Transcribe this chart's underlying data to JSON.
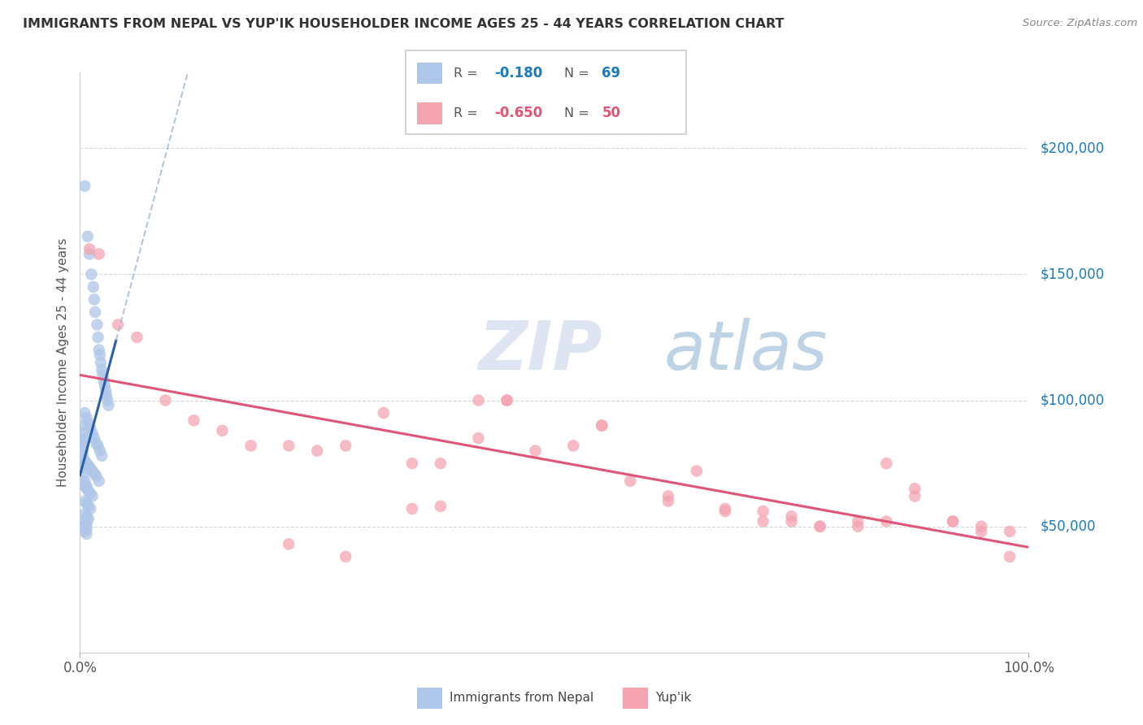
{
  "title": "IMMIGRANTS FROM NEPAL VS YUP'IK HOUSEHOLDER INCOME AGES 25 - 44 YEARS CORRELATION CHART",
  "source": "Source: ZipAtlas.com",
  "ylabel": "Householder Income Ages 25 - 44 years",
  "x_tick_labels": [
    "0.0%",
    "100.0%"
  ],
  "y_tick_labels": [
    "$50,000",
    "$100,000",
    "$150,000",
    "$200,000"
  ],
  "y_tick_values": [
    50000,
    100000,
    150000,
    200000
  ],
  "xlim": [
    0.0,
    1.0
  ],
  "ylim": [
    0,
    230000
  ],
  "legend_nepal_r": "-0.180",
  "legend_nepal_n": "69",
  "legend_yupik_r": "-0.650",
  "legend_yupik_n": "50",
  "nepal_color": "#aec6e8",
  "yupik_color": "#f4a4b0",
  "nepal_line_color": "#2c5fa8",
  "yupik_line_color": "#e05575",
  "nepal_dash_color": "#a0b8d8",
  "r_nepal_color": "#1a7abf",
  "n_nepal_color": "#1a7abf",
  "r_yupik_color": "#e05575",
  "n_yupik_color": "#e05575",
  "nepal_scatter_x": [
    0.005,
    0.008,
    0.01,
    0.012,
    0.014,
    0.015,
    0.016,
    0.018,
    0.019,
    0.02,
    0.021,
    0.022,
    0.023,
    0.024,
    0.025,
    0.026,
    0.027,
    0.028,
    0.029,
    0.03,
    0.005,
    0.007,
    0.009,
    0.011,
    0.013,
    0.015,
    0.017,
    0.019,
    0.021,
    0.023,
    0.005,
    0.007,
    0.009,
    0.011,
    0.013,
    0.015,
    0.017,
    0.02,
    0.005,
    0.007,
    0.009,
    0.011,
    0.013,
    0.005,
    0.007,
    0.009,
    0.011,
    0.005,
    0.007,
    0.009,
    0.005,
    0.007,
    0.005,
    0.007,
    0.005,
    0.007,
    0.003,
    0.005,
    0.007,
    0.003,
    0.005,
    0.003,
    0.005,
    0.003,
    0.003,
    0.003,
    0.003,
    0.003,
    0.003
  ],
  "nepal_scatter_y": [
    185000,
    165000,
    158000,
    150000,
    145000,
    140000,
    135000,
    130000,
    125000,
    120000,
    118000,
    115000,
    112000,
    110000,
    108000,
    106000,
    104000,
    102000,
    100000,
    98000,
    95000,
    93000,
    91000,
    89000,
    87000,
    85000,
    83000,
    82000,
    80000,
    78000,
    76000,
    75000,
    74000,
    73000,
    72000,
    71000,
    70000,
    68000,
    66000,
    65000,
    64000,
    63000,
    62000,
    60000,
    59000,
    58000,
    57000,
    55000,
    54000,
    53000,
    52000,
    51000,
    50000,
    49000,
    48000,
    47000,
    70000,
    68000,
    66000,
    75000,
    73000,
    78000,
    76000,
    80000,
    82000,
    84000,
    85000,
    87000,
    90000
  ],
  "yupik_scatter_x": [
    0.01,
    0.02,
    0.04,
    0.06,
    0.09,
    0.12,
    0.15,
    0.18,
    0.22,
    0.25,
    0.28,
    0.32,
    0.35,
    0.38,
    0.42,
    0.45,
    0.48,
    0.52,
    0.55,
    0.58,
    0.62,
    0.65,
    0.68,
    0.72,
    0.75,
    0.78,
    0.82,
    0.85,
    0.88,
    0.92,
    0.95,
    0.98,
    0.42,
    0.45,
    0.55,
    0.62,
    0.68,
    0.72,
    0.75,
    0.78,
    0.82,
    0.85,
    0.88,
    0.92,
    0.95,
    0.98,
    0.35,
    0.38,
    0.28,
    0.22
  ],
  "yupik_scatter_y": [
    160000,
    158000,
    130000,
    125000,
    100000,
    92000,
    88000,
    82000,
    82000,
    80000,
    82000,
    95000,
    75000,
    75000,
    85000,
    100000,
    80000,
    82000,
    90000,
    68000,
    60000,
    72000,
    56000,
    56000,
    54000,
    50000,
    50000,
    75000,
    62000,
    52000,
    50000,
    48000,
    100000,
    100000,
    90000,
    62000,
    57000,
    52000,
    52000,
    50000,
    52000,
    52000,
    65000,
    52000,
    48000,
    38000,
    57000,
    58000,
    38000,
    43000
  ]
}
